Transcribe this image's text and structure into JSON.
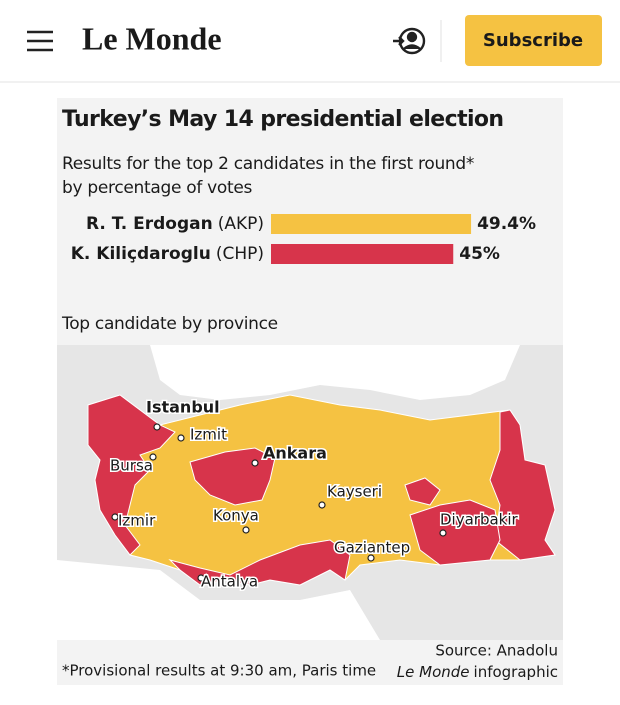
{
  "header": {
    "logo": "Le Monde",
    "subscribe": "Subscribe"
  },
  "infographic": {
    "title": "Turkey’s May 14 presidential election",
    "subtitle": "Results for the top 2 candidates in the first round*",
    "subtitle_line2": "by percentage of votes",
    "map_title": "Top candidate by province",
    "cities": [
      "Istanbul",
      "Izmit",
      "Bursa",
      "Ankara",
      "Izmir",
      "Konya",
      "Kayseri",
      "Gaziantep",
      "Diyarbakir",
      "Antalya"
    ],
    "note": "*Provisional results at 9:30 am, Paris time",
    "source": "Source: Anadolu",
    "credit_brand": "Le Monde",
    "credit_text": "infographic"
  },
  "chart_data": {
    "type": "bar",
    "categories": [
      "R. T. Erdogan",
      "K. Kiliçdaroglu"
    ],
    "parties": [
      "(AKP)",
      "(CHP)"
    ],
    "values": [
      49.4,
      45
    ],
    "value_labels": [
      "49.4%",
      "45%"
    ],
    "colors": [
      "#f5c242",
      "#d7344b"
    ]
  }
}
